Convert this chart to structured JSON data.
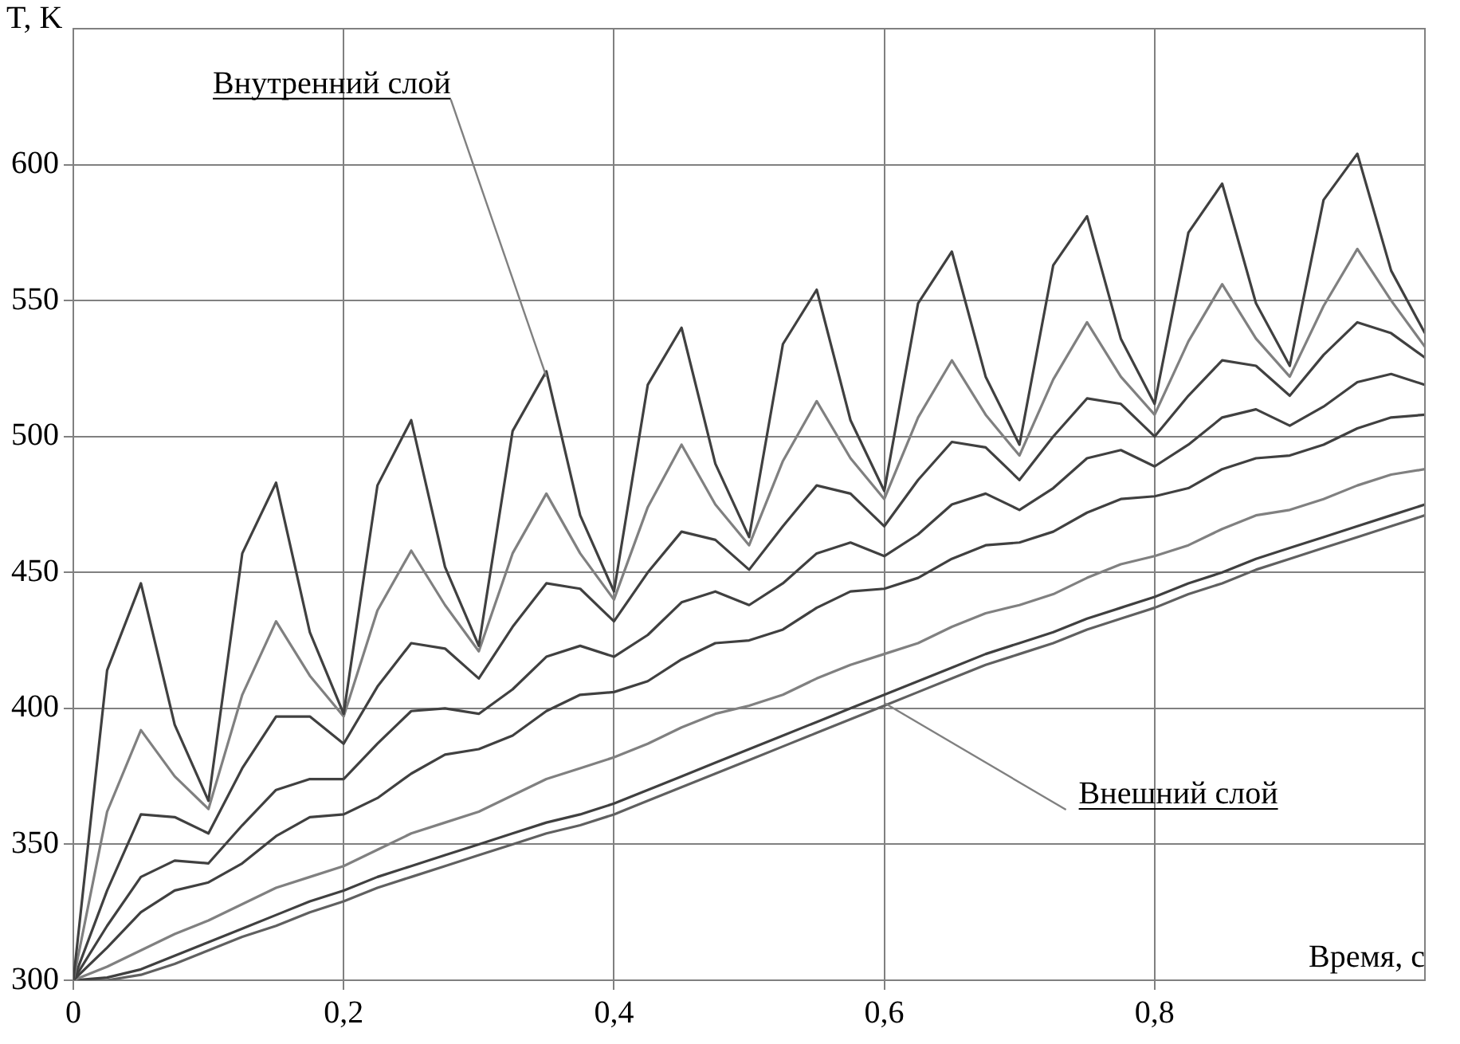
{
  "chart_data": {
    "type": "line",
    "xlabel": "Время, с",
    "ylabel": "T, K",
    "x": [
      0,
      0.025,
      0.05,
      0.075,
      0.1,
      0.125,
      0.15,
      0.175,
      0.2,
      0.225,
      0.25,
      0.275,
      0.3,
      0.325,
      0.35,
      0.375,
      0.4,
      0.425,
      0.45,
      0.475,
      0.5,
      0.525,
      0.55,
      0.575,
      0.6,
      0.625,
      0.65,
      0.675,
      0.7,
      0.725,
      0.75,
      0.775,
      0.8,
      0.825,
      0.85,
      0.875,
      0.9,
      0.925,
      0.95,
      0.975,
      1
    ],
    "series": [
      {
        "color": "#404040",
        "values": [
          300,
          414,
          446,
          394,
          366,
          457,
          483,
          428,
          398,
          482,
          506,
          452,
          423,
          502,
          524,
          471,
          443,
          519,
          540,
          490,
          463,
          534,
          554,
          506,
          480,
          549,
          568,
          522,
          497,
          563,
          581,
          536,
          512,
          575,
          593,
          549,
          526,
          587,
          604,
          561,
          538
        ]
      },
      {
        "color": "#808080",
        "values": [
          300,
          362,
          392,
          375,
          363,
          405,
          432,
          412,
          397,
          436,
          458,
          438,
          421,
          457,
          479,
          457,
          440,
          474,
          497,
          475,
          460,
          491,
          513,
          492,
          477,
          507,
          528,
          508,
          493,
          521,
          542,
          522,
          508,
          535,
          556,
          536,
          522,
          548,
          569,
          550,
          533
        ]
      },
      {
        "color": "#404040",
        "values": [
          300,
          333,
          361,
          360,
          354,
          378,
          397,
          397,
          387,
          408,
          424,
          422,
          411,
          430,
          446,
          444,
          432,
          450,
          465,
          462,
          451,
          467,
          482,
          479,
          467,
          484,
          498,
          496,
          484,
          500,
          514,
          512,
          500,
          515,
          528,
          526,
          515,
          530,
          542,
          538,
          529
        ]
      },
      {
        "color": "#404040",
        "values": [
          300,
          320,
          338,
          344,
          343,
          357,
          370,
          374,
          374,
          387,
          399,
          400,
          398,
          407,
          419,
          423,
          419,
          427,
          439,
          443,
          438,
          446,
          457,
          461,
          456,
          464,
          475,
          479,
          473,
          481,
          492,
          495,
          489,
          497,
          507,
          510,
          504,
          511,
          520,
          523,
          519
        ]
      },
      {
        "color": "#404040",
        "values": [
          300,
          312,
          325,
          333,
          336,
          343,
          353,
          360,
          361,
          367,
          376,
          383,
          385,
          390,
          399,
          405,
          406,
          410,
          418,
          424,
          425,
          429,
          437,
          443,
          444,
          448,
          455,
          460,
          461,
          465,
          472,
          477,
          478,
          481,
          488,
          492,
          493,
          497,
          503,
          507,
          508
        ]
      },
      {
        "color": "#808080",
        "values": [
          300,
          305,
          311,
          317,
          322,
          328,
          334,
          338,
          342,
          348,
          354,
          358,
          362,
          368,
          374,
          378,
          382,
          387,
          393,
          398,
          401,
          405,
          411,
          416,
          420,
          424,
          430,
          435,
          438,
          442,
          448,
          453,
          456,
          460,
          466,
          471,
          473,
          477,
          482,
          486,
          488
        ]
      },
      {
        "color": "#404040",
        "values": [
          300,
          301,
          304,
          309,
          314,
          319,
          324,
          329,
          333,
          338,
          342,
          346,
          350,
          354,
          358,
          361,
          365,
          370,
          375,
          380,
          385,
          390,
          395,
          400,
          405,
          410,
          415,
          420,
          424,
          428,
          433,
          437,
          441,
          446,
          450,
          455,
          459,
          463,
          467,
          471,
          475
        ]
      },
      {
        "color": "#606060",
        "values": [
          300,
          300,
          302,
          306,
          311,
          316,
          320,
          325,
          329,
          334,
          338,
          342,
          346,
          350,
          354,
          357,
          361,
          366,
          371,
          376,
          381,
          386,
          391,
          396,
          401,
          406,
          411,
          416,
          420,
          424,
          429,
          433,
          437,
          442,
          446,
          451,
          455,
          459,
          463,
          467,
          471
        ]
      }
    ],
    "xlim": [
      0,
      1
    ],
    "xticks": [
      0,
      {
        "value": 0.2,
        "label": "0,2"
      },
      {
        "value": 0.4,
        "label": "0,4"
      },
      {
        "value": 0.6,
        "label": "0,6"
      },
      {
        "value": 0.8,
        "label": "0,8"
      }
    ],
    "ylim": [
      300,
      650
    ],
    "yticks": [
      300,
      350,
      400,
      450,
      500,
      550,
      600
    ],
    "grid": true,
    "legend": false,
    "marker": "none",
    "line_style": "solid",
    "annotations": [
      {
        "text": "Внутренний слой",
        "x": 0.35,
        "y": 522
      },
      {
        "text": "Внешний слой",
        "x": 0.6,
        "y": 402
      }
    ]
  }
}
